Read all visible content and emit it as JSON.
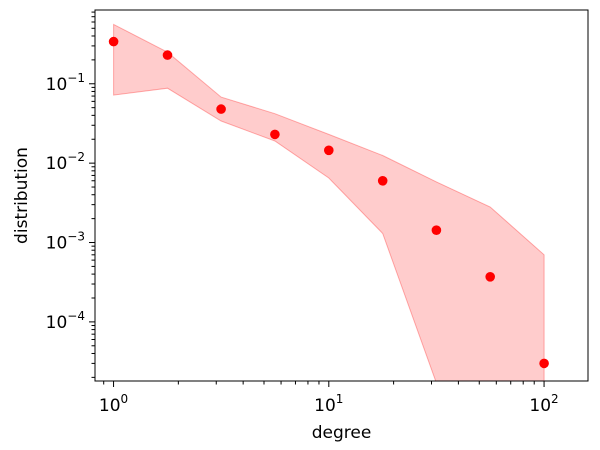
{
  "chart_data": {
    "type": "scatter",
    "title": "",
    "xlabel": "degree",
    "ylabel": "distribution",
    "xscale": "log",
    "yscale": "log",
    "xlim": [
      0.82,
      160
    ],
    "ylim": [
      1.8e-05,
      0.85
    ],
    "grid": false,
    "legend": null,
    "x_ticks": [
      {
        "value": 1,
        "base": "10",
        "exp": "0"
      },
      {
        "value": 10,
        "base": "10",
        "exp": "1"
      },
      {
        "value": 100,
        "base": "10",
        "exp": "2"
      }
    ],
    "y_ticks": [
      {
        "value": 0.0001,
        "base": "10",
        "exp": "−4"
      },
      {
        "value": 0.001,
        "base": "10",
        "exp": "−3"
      },
      {
        "value": 0.01,
        "base": "10",
        "exp": "−2"
      },
      {
        "value": 0.1,
        "base": "10",
        "exp": "−1"
      }
    ],
    "series": [
      {
        "kind": "points",
        "color": "#ff0000",
        "x": [
          1.0,
          1.78,
          3.16,
          5.62,
          10.0,
          17.8,
          31.6,
          56.2,
          100.0
        ],
        "y": [
          0.34,
          0.23,
          0.048,
          0.023,
          0.0145,
          0.006,
          0.00143,
          0.00037,
          3e-05
        ]
      },
      {
        "kind": "band",
        "color": "#ff0000",
        "opacity": 0.2,
        "x": [
          1.0,
          1.78,
          3.16,
          5.62,
          10.0,
          17.8,
          31.6,
          56.2,
          100.0
        ],
        "upper": [
          0.56,
          0.25,
          0.068,
          0.042,
          0.023,
          0.0125,
          0.0058,
          0.0028,
          0.0007
        ],
        "lower": [
          0.072,
          0.088,
          0.034,
          0.019,
          0.0065,
          0.0013,
          null,
          null,
          null
        ]
      }
    ]
  }
}
